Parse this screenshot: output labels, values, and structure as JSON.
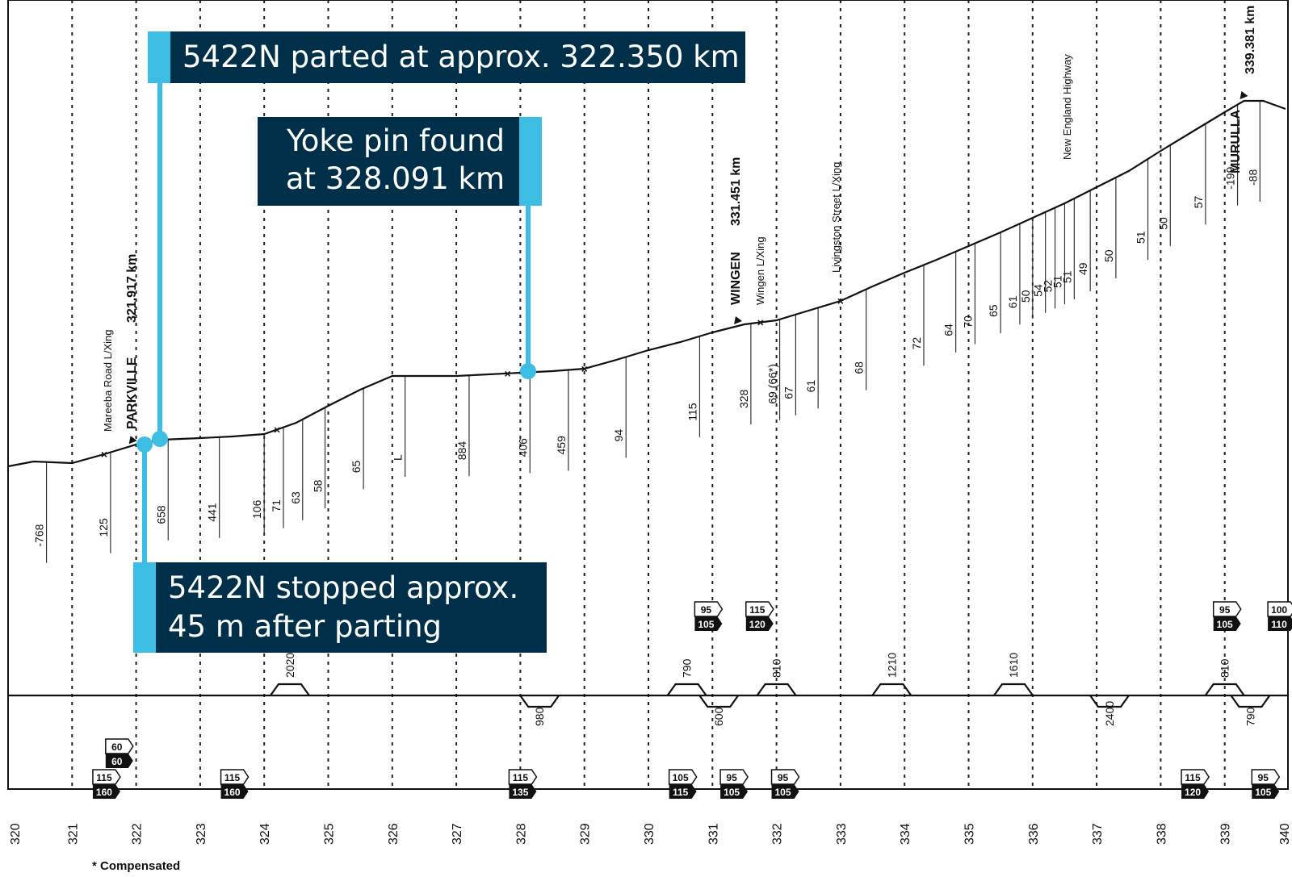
{
  "footnote": "* Compensated",
  "colors": {
    "callout_bg": "#003049",
    "callout_accent": "#3bbde4",
    "line": "#111111"
  },
  "callouts": {
    "parted": "5422N parted at approx. 322.350 km",
    "yoke_line1": "Yoke pin found",
    "yoke_line2": "at 328.091 km",
    "stopped_line1": "5422N stopped approx.",
    "stopped_line2": "45 m after parting"
  },
  "stations": [
    {
      "name": "PARKVILLE",
      "km_label": "321.917 km"
    },
    {
      "name": "WINGEN",
      "km_label": "331.451 km"
    },
    {
      "name": "MURULLA",
      "km_label": "339.381 km"
    }
  ],
  "crossings": [
    {
      "label": "Mareeba Road L/Xing"
    },
    {
      "label": "Wingen L/Xing"
    },
    {
      "label": "Livingston Street L/Xing"
    },
    {
      "label": "New England Highway"
    }
  ],
  "chart_data": {
    "type": "line",
    "x_axis": {
      "ticks": [
        "320",
        "321",
        "322",
        "323",
        "324",
        "325",
        "326",
        "327",
        "328",
        "329",
        "330",
        "331",
        "332",
        "333",
        "334",
        "335",
        "336",
        "337",
        "338",
        "339",
        "340"
      ]
    },
    "gradient_values": [
      {
        "km": 320.6,
        "label": "-768"
      },
      {
        "km": 321.6,
        "label": "125"
      },
      {
        "km": 322.5,
        "label": "658"
      },
      {
        "km": 323.3,
        "label": "441"
      },
      {
        "km": 324.0,
        "label": "106"
      },
      {
        "km": 324.3,
        "label": "71"
      },
      {
        "km": 324.6,
        "label": "63"
      },
      {
        "km": 324.95,
        "label": "58"
      },
      {
        "km": 325.55,
        "label": "65"
      },
      {
        "km": 326.2,
        "label": "L"
      },
      {
        "km": 327.2,
        "label": "884"
      },
      {
        "km": 328.15,
        "label": "406"
      },
      {
        "km": 328.75,
        "label": "459"
      },
      {
        "km": 329.65,
        "label": "94"
      },
      {
        "km": 330.8,
        "label": "115"
      },
      {
        "km": 331.6,
        "label": "328"
      },
      {
        "km": 332.05,
        "label": "69 (66*)"
      },
      {
        "km": 332.3,
        "label": "67"
      },
      {
        "km": 332.65,
        "label": "61"
      },
      {
        "km": 333.4,
        "label": "68"
      },
      {
        "km": 334.3,
        "label": "72"
      },
      {
        "km": 334.8,
        "label": "64"
      },
      {
        "km": 335.1,
        "label": "70"
      },
      {
        "km": 335.5,
        "label": "65"
      },
      {
        "km": 335.8,
        "label": "61"
      },
      {
        "km": 336.0,
        "label": "50"
      },
      {
        "km": 336.2,
        "label": "54"
      },
      {
        "km": 336.35,
        "label": "52"
      },
      {
        "km": 336.5,
        "label": "51"
      },
      {
        "km": 336.65,
        "label": "51"
      },
      {
        "km": 336.9,
        "label": "49"
      },
      {
        "km": 337.3,
        "label": "50"
      },
      {
        "km": 337.8,
        "label": "51"
      },
      {
        "km": 338.15,
        "label": "50"
      },
      {
        "km": 338.7,
        "label": "57"
      },
      {
        "km": 339.2,
        "label": "-199"
      },
      {
        "km": 339.55,
        "label": "-88"
      }
    ],
    "curves": [
      {
        "km": 324.4,
        "label": "2020",
        "dir": "up"
      },
      {
        "km": 328.3,
        "label": "980",
        "dir": "down"
      },
      {
        "km": 330.6,
        "label": "790",
        "dir": "up"
      },
      {
        "km": 331.1,
        "label": "600",
        "dir": "down"
      },
      {
        "km": 332.0,
        "label": "810",
        "dir": "up"
      },
      {
        "km": 333.8,
        "label": "1210",
        "dir": "up"
      },
      {
        "km": 335.7,
        "label": "1610",
        "dir": "up"
      },
      {
        "km": 337.2,
        "label": "2400",
        "dir": "down"
      },
      {
        "km": 339.0,
        "label": "810",
        "dir": "up"
      },
      {
        "km": 339.4,
        "label": "790",
        "dir": "down"
      }
    ],
    "speed_signs_upper": [
      {
        "km": 330.9,
        "top": "95",
        "bottom": "105"
      },
      {
        "km": 331.7,
        "top": "115",
        "bottom": "120"
      },
      {
        "km": 339.0,
        "top": "95",
        "bottom": "105"
      },
      {
        "km": 339.85,
        "top": "100",
        "bottom": "110"
      }
    ],
    "speed_signs_lower": [
      {
        "km": 321.7,
        "top": "60",
        "bottom": "60"
      },
      {
        "km": 321.5,
        "top": "115",
        "bottom": "160"
      },
      {
        "km": 323.5,
        "top": "115",
        "bottom": "160"
      },
      {
        "km": 328.0,
        "top": "115",
        "bottom": "135"
      },
      {
        "km": 330.5,
        "top": "105",
        "bottom": "115"
      },
      {
        "km": 331.3,
        "top": "95",
        "bottom": "105"
      },
      {
        "km": 332.1,
        "top": "95",
        "bottom": "105"
      },
      {
        "km": 338.5,
        "top": "115",
        "bottom": "120"
      },
      {
        "km": 339.6,
        "top": "95",
        "bottom": "105"
      }
    ]
  }
}
